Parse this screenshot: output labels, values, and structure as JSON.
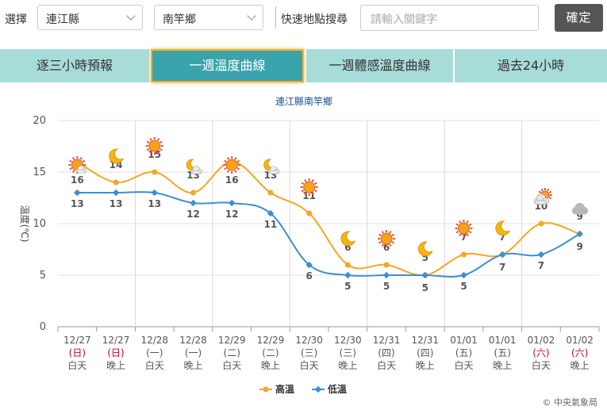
{
  "search": {
    "label_select": "選擇",
    "county": "連江縣",
    "township": "南竿鄉",
    "label_quick": "快速地點搜尋",
    "placeholder": "請輸入關鍵字",
    "confirm": "確定"
  },
  "tabs": [
    {
      "label": "逐三小時預報",
      "active": false
    },
    {
      "label": "一週溫度曲線",
      "active": true
    },
    {
      "label": "一週體感溫度曲線",
      "active": false
    },
    {
      "label": "過去24小時",
      "active": false
    }
  ],
  "footer": {
    "copyright": "© 中央氣象局"
  },
  "chart_data": {
    "type": "line",
    "title": "連江縣南竿鄉",
    "ylabel": "溫度(℃)",
    "ylim": [
      0,
      20
    ],
    "yticks": [
      0,
      5,
      10,
      15,
      20
    ],
    "grid": true,
    "legend_position": "bottom",
    "categories": [
      {
        "date": "12/27",
        "weekday": "(日)",
        "period": "白天",
        "weekend": true
      },
      {
        "date": "12/27",
        "weekday": "(日)",
        "period": "晚上",
        "weekend": true
      },
      {
        "date": "12/28",
        "weekday": "(一)",
        "period": "白天",
        "weekend": false
      },
      {
        "date": "12/28",
        "weekday": "(一)",
        "period": "晚上",
        "weekend": false
      },
      {
        "date": "12/29",
        "weekday": "(二)",
        "period": "白天",
        "weekend": false
      },
      {
        "date": "12/29",
        "weekday": "(二)",
        "period": "晚上",
        "weekend": false
      },
      {
        "date": "12/30",
        "weekday": "(三)",
        "period": "白天",
        "weekend": false
      },
      {
        "date": "12/30",
        "weekday": "(三)",
        "period": "晚上",
        "weekend": false
      },
      {
        "date": "12/31",
        "weekday": "(四)",
        "period": "白天",
        "weekend": false
      },
      {
        "date": "12/31",
        "weekday": "(四)",
        "period": "晚上",
        "weekend": false
      },
      {
        "date": "01/01",
        "weekday": "(五)",
        "period": "白天",
        "weekend": false
      },
      {
        "date": "01/01",
        "weekday": "(五)",
        "period": "晚上",
        "weekend": false
      },
      {
        "date": "01/02",
        "weekday": "(六)",
        "period": "白天",
        "weekend": true
      },
      {
        "date": "01/02",
        "weekday": "(六)",
        "period": "晚上",
        "weekend": true
      }
    ],
    "series": [
      {
        "name": "高溫",
        "color": "#f5a623",
        "values": [
          16,
          14,
          15,
          13,
          16,
          13,
          11,
          6,
          6,
          5,
          7,
          7,
          10,
          9
        ]
      },
      {
        "name": "低溫",
        "color": "#3d8fd1",
        "values": [
          13,
          13,
          13,
          12,
          12,
          11,
          6,
          5,
          5,
          5,
          5,
          7,
          7,
          9
        ]
      }
    ],
    "weather_icons": [
      "sunny-cloudy",
      "moon",
      "sunny",
      "moon-cloudy",
      "sunny",
      "moon-cloudy",
      "sunny",
      "moon",
      "sunny",
      "moon",
      "sunny",
      "moon",
      "cloudy-sun",
      "cloudy"
    ]
  }
}
